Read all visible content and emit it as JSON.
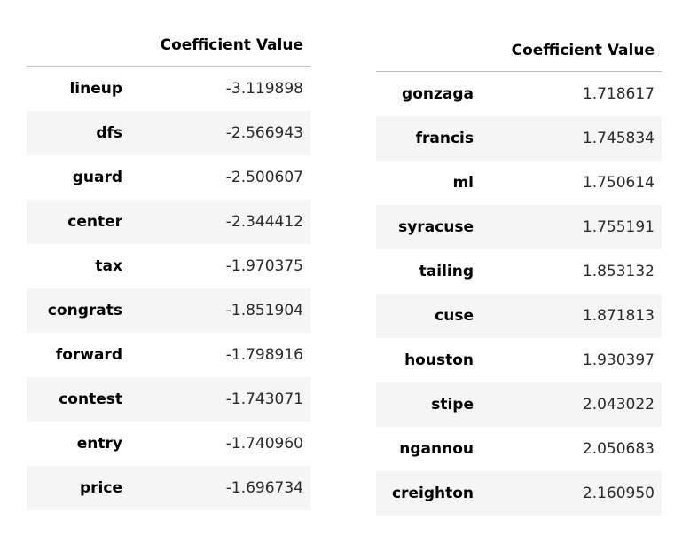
{
  "left_table": {
    "column_header": "Coefficient Value",
    "rows": [
      {
        "term": "lineup",
        "value": "-3.119898"
      },
      {
        "term": "dfs",
        "value": "-2.566943"
      },
      {
        "term": "guard",
        "value": "-2.500607"
      },
      {
        "term": "center",
        "value": "-2.344412"
      },
      {
        "term": "tax",
        "value": "-1.970375"
      },
      {
        "term": "congrats",
        "value": "-1.851904"
      },
      {
        "term": "forward",
        "value": "-1.798916"
      },
      {
        "term": "contest",
        "value": "-1.743071"
      },
      {
        "term": "entry",
        "value": "-1.740960"
      },
      {
        "term": "price",
        "value": "-1.696734"
      }
    ]
  },
  "right_table": {
    "column_header": "Coefficient Value",
    "rows": [
      {
        "term": "gonzaga",
        "value": "1.718617"
      },
      {
        "term": "francis",
        "value": "1.745834"
      },
      {
        "term": "ml",
        "value": "1.750614"
      },
      {
        "term": "syracuse",
        "value": "1.755191"
      },
      {
        "term": "tailing",
        "value": "1.853132"
      },
      {
        "term": "cuse",
        "value": "1.871813"
      },
      {
        "term": "houston",
        "value": "1.930397"
      },
      {
        "term": "stipe",
        "value": "2.043022"
      },
      {
        "term": "ngannou",
        "value": "2.050683"
      },
      {
        "term": "creighton",
        "value": "2.160950"
      }
    ]
  }
}
